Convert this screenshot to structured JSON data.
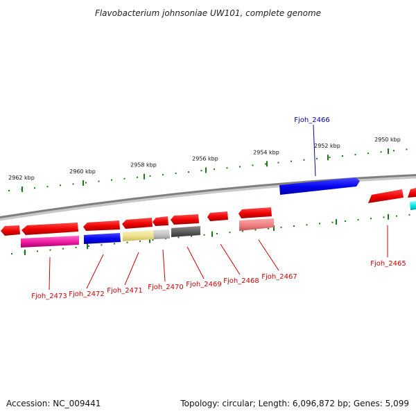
{
  "title": "Flavobacterium johnsoniae UW101, complete genome",
  "footer": {
    "accession": "Accession: NC_009441",
    "topology": "Topology: circular; Length: 6,096,872 bp; Genes: 5,099"
  },
  "colors": {
    "backbone": "#8c8c8c",
    "tick": "#1a7a1a",
    "label_red": "#cc0000",
    "label_blue": "#0000aa"
  },
  "scale": {
    "ticks": [
      {
        "label": "2962 kbp"
      },
      {
        "label": "2960 kbp"
      },
      {
        "label": "2958 kbp"
      },
      {
        "label": "2956 kbp"
      },
      {
        "label": "2954 kbp"
      },
      {
        "label": "2952 kbp"
      },
      {
        "label": "2950 kbp"
      }
    ]
  },
  "labels": [
    {
      "id": "Fjoh_2466",
      "text": "Fjoh_2466",
      "color": "#0000aa"
    },
    {
      "id": "Fjoh_2465",
      "text": "Fjoh_2465",
      "color": "#cc0000"
    },
    {
      "id": "Fjoh_2467",
      "text": "Fjoh_2467",
      "color": "#cc0000"
    },
    {
      "id": "Fjoh_2468",
      "text": "Fjoh_2468",
      "color": "#cc0000"
    },
    {
      "id": "Fjoh_2469",
      "text": "Fjoh_2469",
      "color": "#cc0000"
    },
    {
      "id": "Fjoh_2470",
      "text": "Fjoh_2470",
      "color": "#cc0000"
    },
    {
      "id": "Fjoh_2471",
      "text": "Fjoh_2471",
      "color": "#cc0000"
    },
    {
      "id": "Fjoh_2472",
      "text": "Fjoh_2472",
      "color": "#cc0000"
    },
    {
      "id": "Fjoh_2473",
      "text": "Fjoh_2473",
      "color": "#cc0000"
    }
  ]
}
